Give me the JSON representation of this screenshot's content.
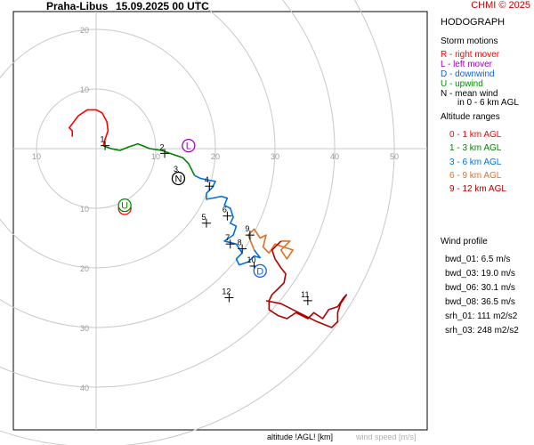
{
  "header": {
    "station": "Praha-Libus",
    "datetime": "15.09.2025 00 UTC",
    "copyright": "CHMI © 2025"
  },
  "panel": {
    "title": "HODOGRAPH",
    "storm_motions_title": "Storm motions",
    "storm_motions": [
      {
        "text": "R - right mover",
        "color": "#ff0000"
      },
      {
        "text": "L - left mover",
        "color": "#a000c0"
      },
      {
        "text": "D - downwind",
        "color": "#0060ff"
      },
      {
        "text": "U - upwind",
        "color": "#009000"
      },
      {
        "text": "N - mean wind",
        "color": "#000000"
      }
    ],
    "mean_wind_note": "in 0 - 6 km AGL",
    "altitude_ranges_title": "Altitude ranges",
    "altitude_ranges": [
      {
        "text": "0 - 1 km AGL",
        "color": "#ff0000"
      },
      {
        "text": "1 - 3 km AGL",
        "color": "#008000"
      },
      {
        "text": "3 - 6 km AGL",
        "color": "#0070e0"
      },
      {
        "text": "6 - 9 km AGL",
        "color": "#e07020"
      },
      {
        "text": "9 - 12 km AGL",
        "color": "#b00000"
      }
    ],
    "wind_profile_title": "Wind profile",
    "wind_profile": [
      "bwd_01: 6.5 m/s",
      "bwd_03: 19.0 m/s",
      "bwd_06: 30.1 m/s",
      "bwd_08: 36.5 m/s"
    ],
    "helicity": [
      "srh_01: 111 m2/s2",
      "srh_03: 248 m2/s2"
    ]
  },
  "footer": {
    "altitude_label": "altitude !AGL! [km]",
    "speed_label": "wind speed [m/s]"
  },
  "chart_data": {
    "type": "line",
    "rings": [
      10,
      20,
      30,
      40,
      50
    ],
    "x_ticks": [
      {
        "value": -10,
        "label": "10"
      },
      {
        "value": 10,
        "label": "10"
      },
      {
        "value": 20,
        "label": "20"
      },
      {
        "value": 30,
        "label": "30"
      },
      {
        "value": 40,
        "label": "40"
      },
      {
        "value": 50,
        "label": "50"
      }
    ],
    "y_ticks": [
      {
        "value": 20,
        "label": "20"
      },
      {
        "value": 10,
        "label": "10"
      },
      {
        "value": -10,
        "label": "10"
      },
      {
        "value": -20,
        "label": "20"
      },
      {
        "value": -30,
        "label": "30"
      },
      {
        "value": -40,
        "label": "40"
      }
    ],
    "segments": [
      {
        "name": "0 - 1 km AGL",
        "color": "#ff0000",
        "points": [
          [
            -4,
            2
          ],
          [
            -4,
            3
          ],
          [
            -4.5,
            3.5
          ],
          [
            -3,
            5.5
          ],
          [
            -1.5,
            6.5
          ],
          [
            0,
            6.5
          ],
          [
            1,
            6
          ],
          [
            1.8,
            4.5
          ],
          [
            2,
            3
          ],
          [
            1.5,
            1.5
          ],
          [
            1.2,
            0.5
          ]
        ]
      },
      {
        "name": "1 - 3 km AGL",
        "color": "#008000",
        "points": [
          [
            1.2,
            0.5
          ],
          [
            2.5,
            0
          ],
          [
            4,
            -0.3
          ],
          [
            5.5,
            0.3
          ],
          [
            7,
            0.8
          ],
          [
            9,
            0
          ],
          [
            11,
            -0.3
          ],
          [
            13,
            -1
          ],
          [
            14.5,
            -1.5
          ],
          [
            15.5,
            -2.5
          ],
          [
            16,
            -3.5
          ],
          [
            16.5,
            -4.5
          ]
        ]
      },
      {
        "name": "3 - 6 km AGL",
        "color": "#0070e0",
        "points": [
          [
            16.5,
            -4.5
          ],
          [
            17.5,
            -5
          ],
          [
            19,
            -5.3
          ],
          [
            20,
            -5.5
          ],
          [
            19.5,
            -6.5
          ],
          [
            18.5,
            -7.5
          ],
          [
            18.5,
            -8.5
          ],
          [
            19.5,
            -8.3
          ],
          [
            21,
            -8
          ],
          [
            22,
            -8.3
          ],
          [
            21.5,
            -9.5
          ],
          [
            22.5,
            -10
          ],
          [
            23,
            -11.5
          ],
          [
            22.5,
            -12.5
          ],
          [
            23.5,
            -13
          ],
          [
            23,
            -14.5
          ],
          [
            21.5,
            -15.5
          ],
          [
            23.5,
            -16
          ],
          [
            24.5,
            -17.5
          ],
          [
            23.5,
            -18.5
          ],
          [
            24,
            -19.5
          ],
          [
            25.5,
            -19
          ],
          [
            26.5,
            -18
          ],
          [
            27.5,
            -18.3
          ],
          [
            26.5,
            -17
          ]
        ]
      },
      {
        "name": "6 - 9 km AGL",
        "color": "#e07020",
        "points": [
          [
            26.5,
            -17
          ],
          [
            25.5,
            -14.5
          ],
          [
            26.5,
            -13.5
          ],
          [
            27.5,
            -15
          ],
          [
            28.5,
            -14.5
          ],
          [
            28,
            -16.5
          ],
          [
            29,
            -17.5
          ],
          [
            30,
            -16
          ],
          [
            31.5,
            -16.5
          ],
          [
            33,
            -17
          ],
          [
            32,
            -18.5
          ],
          [
            31,
            -17
          ],
          [
            32.5,
            -15.5
          ],
          [
            31,
            -15.5
          ]
        ]
      },
      {
        "name": "9 - 12 km AGL",
        "color": "#b00000",
        "points": [
          [
            31,
            -15.5
          ],
          [
            29.5,
            -17
          ],
          [
            30,
            -18.5
          ],
          [
            31,
            -20
          ],
          [
            31.8,
            -21
          ],
          [
            31.5,
            -22.5
          ],
          [
            30.5,
            -23.5
          ],
          [
            29.5,
            -24.5
          ],
          [
            29,
            -25.5
          ],
          [
            29,
            -27
          ],
          [
            30.5,
            -28
          ],
          [
            32,
            -28.5
          ],
          [
            33.5,
            -27.5
          ],
          [
            35.5,
            -28.5
          ],
          [
            36.5,
            -27.5
          ],
          [
            38,
            -28.5
          ],
          [
            39,
            -27
          ],
          [
            40.5,
            -26.5
          ],
          [
            41.5,
            -25
          ],
          [
            42,
            -24.5
          ],
          [
            41,
            -26
          ],
          [
            40.5,
            -27.5
          ],
          [
            40.5,
            -29
          ],
          [
            39.5,
            -30
          ],
          [
            37,
            -29
          ],
          [
            34,
            -27.5
          ],
          [
            31,
            -26
          ],
          [
            28.5,
            -25.5
          ]
        ]
      }
    ],
    "altitude_marks": [
      {
        "label": "1",
        "x": 1.5,
        "y": 0.5
      },
      {
        "label": "2",
        "x": 11.5,
        "y": -0.8
      },
      {
        "label": "3",
        "x": 13.8,
        "y": -4.5
      },
      {
        "label": "4",
        "x": 19,
        "y": -6.3
      },
      {
        "label": "5",
        "x": 18.5,
        "y": -12.5
      },
      {
        "label": "6",
        "x": 22,
        "y": -11.3
      },
      {
        "label": "7",
        "x": 22.5,
        "y": -16
      },
      {
        "label": "8",
        "x": 24.5,
        "y": -16.8
      },
      {
        "label": "9",
        "x": 25.8,
        "y": -14.5
      },
      {
        "label": "10",
        "x": 26.5,
        "y": -19.7
      },
      {
        "label": "11",
        "x": 35.5,
        "y": -25.5
      },
      {
        "label": "12",
        "x": 22.3,
        "y": -25
      }
    ],
    "storm_markers": [
      {
        "label": "R",
        "x": 4.8,
        "y": -10,
        "color": "#ff0000"
      },
      {
        "label": "L",
        "x": 15.5,
        "y": 0.5,
        "color": "#a000c0"
      },
      {
        "label": "D",
        "x": 27.5,
        "y": -20.5,
        "color": "#0060ff"
      },
      {
        "label": "U",
        "x": 4.8,
        "y": -9.5,
        "color": "#009000"
      },
      {
        "label": "N",
        "x": 13.8,
        "y": -5,
        "color": "#000000"
      }
    ]
  }
}
